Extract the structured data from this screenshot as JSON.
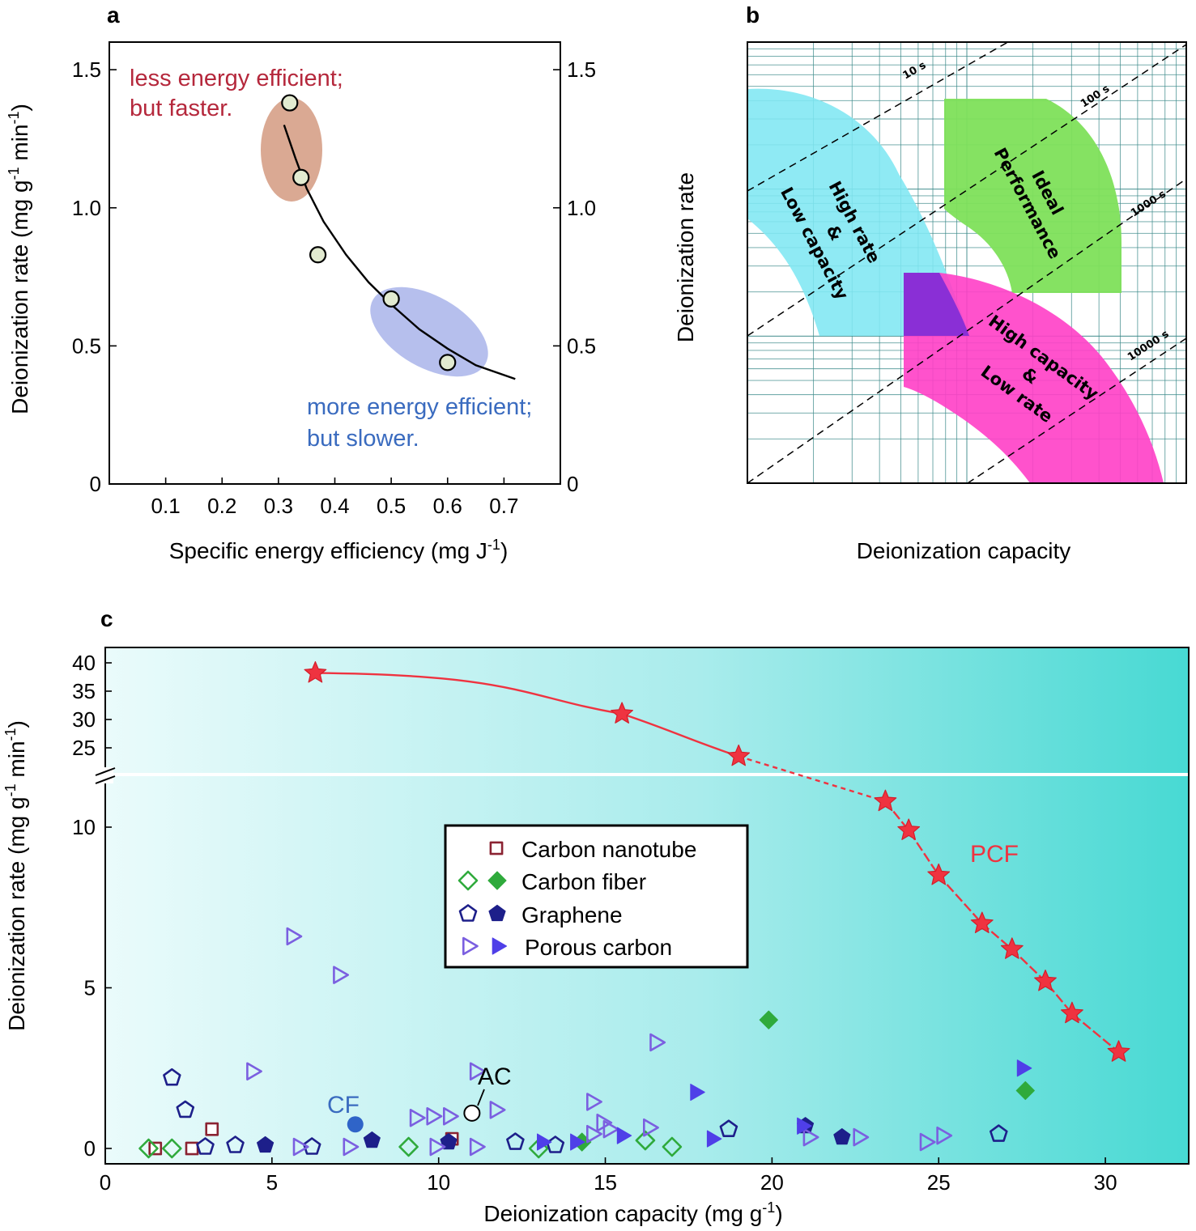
{
  "panels": {
    "a": {
      "label": "a"
    },
    "b": {
      "label": "b"
    },
    "c": {
      "label": "c"
    }
  },
  "chart_data": [
    {
      "panel": "a",
      "type": "scatter",
      "xlabel": "Specific energy efficiency (mg J",
      "xlabel_sup": "-1",
      "xlabel_end": ")",
      "ylabel": "Deionization rate (mg g",
      "ylabel_sup1": "-1",
      "ylabel_mid": " min",
      "ylabel_sup2": "-1",
      "ylabel_end": ")",
      "xlim": [
        0,
        0.8
      ],
      "ylim": [
        0,
        1.6
      ],
      "xticks": [
        "0.1",
        "0.2",
        "0.3",
        "0.4",
        "0.5",
        "0.6",
        "0.7"
      ],
      "xtick_values": [
        0.1,
        0.2,
        0.3,
        0.4,
        0.5,
        0.6,
        0.7
      ],
      "yticks": [
        "0",
        "0.5",
        "1.0",
        "1.5"
      ],
      "ytick_values": [
        0,
        0.5,
        1.0,
        1.5
      ],
      "points": [
        {
          "x": 0.32,
          "y": 1.38
        },
        {
          "x": 0.34,
          "y": 1.11
        },
        {
          "x": 0.37,
          "y": 0.83
        },
        {
          "x": 0.5,
          "y": 0.67
        },
        {
          "x": 0.6,
          "y": 0.44
        }
      ],
      "fit_curve": [
        [
          0.31,
          1.3
        ],
        [
          0.33,
          1.18
        ],
        [
          0.35,
          1.07
        ],
        [
          0.38,
          0.95
        ],
        [
          0.42,
          0.83
        ],
        [
          0.46,
          0.73
        ],
        [
          0.5,
          0.65
        ],
        [
          0.55,
          0.56
        ],
        [
          0.6,
          0.49
        ],
        [
          0.65,
          0.43
        ],
        [
          0.72,
          0.38
        ]
      ],
      "annotations": [
        {
          "text": "less energy efficient;",
          "color": "#b5283c"
        },
        {
          "text": "but faster.",
          "color": "#b5283c"
        },
        {
          "text": "more energy efficient;",
          "color": "#3a6bbf"
        },
        {
          "text": "but slower.",
          "color": "#3a6bbf"
        }
      ],
      "colors": {
        "fast_region": "#d49a80",
        "slow_region": "#a9b4ea",
        "marker_fill": "#e2ead0"
      }
    },
    {
      "panel": "b",
      "type": "diagram",
      "xlabel": "Deionization capacity",
      "ylabel": "Deionization rate",
      "time_lines": [
        "10 s",
        "100 s",
        "1000 s",
        "10000 s"
      ],
      "regions": [
        {
          "lines": [
            "High rate",
            "&",
            "Low capacity"
          ],
          "color": "#7fe7f2"
        },
        {
          "lines": [
            "Ideal",
            "Performance"
          ],
          "color": "#7ee05a"
        },
        {
          "lines": [
            "High capacity",
            "&",
            "Low rate"
          ],
          "color": "#ff3fc6"
        }
      ],
      "overlap_color": "#8a2fd6"
    },
    {
      "panel": "c",
      "type": "scatter",
      "xlabel": "Deionization capacity (mg g",
      "xlabel_sup": "-1",
      "xlabel_end": ")",
      "ylabel": "Deionization rate (mg g",
      "ylabel_sup1": "-1",
      "ylabel_mid": " min",
      "ylabel_sup2": "-1",
      "ylabel_end": ")",
      "xlim": [
        0,
        32.5
      ],
      "xticks": [
        "0",
        "5",
        "10",
        "15",
        "20",
        "25",
        "30"
      ],
      "xtick_values": [
        0,
        5,
        10,
        15,
        20,
        25,
        30
      ],
      "y_lower_ticks": [
        "0",
        "5",
        "10"
      ],
      "y_lower_values": [
        0,
        5,
        10
      ],
      "y_upper_ticks": [
        "25",
        "30",
        "35",
        "40"
      ],
      "y_upper_values": [
        25,
        30,
        35,
        40
      ],
      "y_break": true,
      "legend": [
        {
          "name": "Carbon nanotube",
          "open": "square",
          "filled": null
        },
        {
          "name": "Carbon fiber",
          "open": "diamond",
          "filled": "diamond"
        },
        {
          "name": "Graphene",
          "open": "pentagon",
          "filled": "pentagon"
        },
        {
          "name": "Porous carbon",
          "open": "triangle",
          "filled": "triangle"
        }
      ],
      "series": [
        {
          "name": "PCF",
          "marker": "star",
          "color": "#ef3340",
          "points": [
            [
              6.3,
              38.2
            ],
            [
              15.5,
              31.0
            ],
            [
              19.0,
              23.5
            ],
            [
              23.4,
              10.8
            ],
            [
              24.1,
              9.9
            ],
            [
              25.0,
              8.5
            ],
            [
              26.3,
              7.0
            ],
            [
              27.2,
              6.2
            ],
            [
              28.2,
              5.2
            ],
            [
              29.0,
              4.2
            ],
            [
              30.4,
              3.0
            ]
          ]
        },
        {
          "name": "Carbon nanotube",
          "marker": "square",
          "fill": "open",
          "color": "#8b2332",
          "points": [
            [
              1.5,
              0.0
            ],
            [
              2.6,
              0.0
            ],
            [
              3.2,
              0.6
            ],
            [
              10.4,
              0.3
            ]
          ]
        },
        {
          "name": "Carbon fiber",
          "marker": "diamond",
          "fill": "open",
          "color": "#2faa3c",
          "points": [
            [
              1.3,
              0.0
            ],
            [
              2.0,
              0.0
            ],
            [
              9.1,
              0.05
            ],
            [
              13.0,
              0.0
            ],
            [
              16.2,
              0.25
            ],
            [
              17.0,
              0.05
            ]
          ]
        },
        {
          "name": "Carbon fiber",
          "marker": "diamond",
          "fill": "filled",
          "color": "#2faa3c",
          "points": [
            [
              14.3,
              0.2
            ],
            [
              19.9,
              4.0
            ],
            [
              27.6,
              1.8
            ]
          ]
        },
        {
          "name": "Graphene",
          "marker": "pentagon",
          "fill": "open",
          "color": "#1d1f8a",
          "points": [
            [
              2.0,
              2.2
            ],
            [
              2.4,
              1.2
            ],
            [
              3.0,
              0.05
            ],
            [
              3.9,
              0.1
            ],
            [
              6.2,
              0.05
            ],
            [
              12.3,
              0.2
            ],
            [
              13.5,
              0.1
            ],
            [
              18.7,
              0.6
            ],
            [
              26.8,
              0.45
            ]
          ]
        },
        {
          "name": "Graphene",
          "marker": "pentagon",
          "fill": "filled",
          "color": "#1d1f8a",
          "points": [
            [
              4.8,
              0.1
            ],
            [
              8.0,
              0.25
            ],
            [
              10.3,
              0.2
            ],
            [
              21.0,
              0.7
            ],
            [
              22.1,
              0.35
            ]
          ]
        },
        {
          "name": "Porous carbon",
          "marker": "triangle",
          "fill": "open",
          "color": "#7b5fe0",
          "points": [
            [
              5.6,
              6.6
            ],
            [
              7.0,
              5.4
            ],
            [
              4.4,
              2.4
            ],
            [
              9.3,
              0.95
            ],
            [
              9.8,
              1.0
            ],
            [
              10.3,
              1.0
            ],
            [
              11.1,
              2.4
            ],
            [
              11.7,
              1.2
            ],
            [
              14.6,
              1.45
            ],
            [
              14.9,
              0.8
            ],
            [
              15.1,
              0.6
            ],
            [
              16.3,
              0.65
            ],
            [
              16.5,
              3.3
            ],
            [
              14.6,
              0.45
            ],
            [
              11.1,
              0.05
            ],
            [
              9.9,
              0.05
            ],
            [
              7.3,
              0.05
            ],
            [
              5.8,
              0.05
            ],
            [
              21.1,
              0.35
            ],
            [
              22.6,
              0.35
            ],
            [
              24.6,
              0.2
            ],
            [
              25.1,
              0.4
            ]
          ]
        },
        {
          "name": "Porous carbon",
          "marker": "triangle",
          "fill": "filled",
          "color": "#4f3fe8",
          "points": [
            [
              13.1,
              0.2
            ],
            [
              14.1,
              0.2
            ],
            [
              15.5,
              0.4
            ],
            [
              17.7,
              1.75
            ],
            [
              18.2,
              0.3
            ],
            [
              20.9,
              0.7
            ],
            [
              27.5,
              2.5
            ]
          ]
        }
      ],
      "annotations": [
        {
          "text": "PCF",
          "color": "#ef3340"
        },
        {
          "text": "CF",
          "color": "#3a6bbf",
          "x": 7.5,
          "y": 0.75
        },
        {
          "text": "AC",
          "color": "#000000",
          "x": 11.0,
          "y": 1.1
        }
      ],
      "colors": {
        "bg_left": "#eafbfb",
        "bg_right": "#47d9d3",
        "cf_point": "#2f64c8"
      }
    }
  ]
}
